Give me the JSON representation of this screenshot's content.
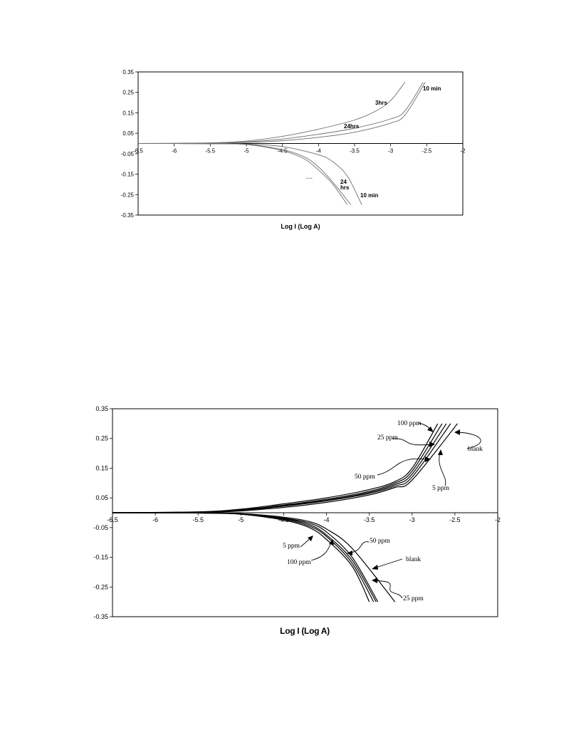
{
  "chart_data": [
    {
      "type": "line",
      "title": "",
      "xlabel": "Log I (Log A)",
      "ylabel": "",
      "xlim": [
        -6.5,
        -2
      ],
      "ylim": [
        -0.35,
        0.35
      ],
      "x_ticks": [
        "-6.5",
        "-6",
        "-5.5",
        "-5",
        "-4.5",
        "-4",
        "-3.5",
        "-3",
        "-2.5",
        "-2"
      ],
      "y_ticks": [
        "0.35",
        "0.25",
        "0.15",
        "0.05",
        "-0.05",
        "-0.15",
        "-0.25",
        "-0.35"
      ],
      "grid": false,
      "legend": "none",
      "line_color": "#6e6e6e",
      "annotations": [
        "3hrs",
        "24hrs",
        "10 min",
        "24 hrs",
        "10 min",
        "...."
      ],
      "series": [
        {
          "branch": "anodic",
          "label": "3hrs",
          "x": [
            -6.5,
            -5.5,
            -5.0,
            -4.5,
            -4.0,
            -3.5,
            -3.2,
            -3.0,
            -2.8
          ],
          "y": [
            0.0,
            0.003,
            0.012,
            0.035,
            0.07,
            0.115,
            0.16,
            0.21,
            0.3
          ]
        },
        {
          "branch": "anodic",
          "label": "24hrs",
          "x": [
            -6.5,
            -5.5,
            -5.0,
            -4.5,
            -4.0,
            -3.5,
            -3.0,
            -2.8,
            -2.55
          ],
          "y": [
            0.0,
            0.002,
            0.008,
            0.022,
            0.045,
            0.075,
            0.12,
            0.16,
            0.3
          ]
        },
        {
          "branch": "anodic",
          "label": "10 min",
          "x": [
            -6.5,
            -5.5,
            -5.0,
            -4.5,
            -4.0,
            -3.5,
            -3.0,
            -2.8,
            -2.52
          ],
          "y": [
            0.0,
            0.001,
            0.005,
            0.014,
            0.03,
            0.055,
            0.1,
            0.14,
            0.3
          ]
        },
        {
          "branch": "cathodic",
          "label": "24 hrs",
          "x": [
            -6.5,
            -5.5,
            -5.0,
            -4.5,
            -4.2,
            -4.0,
            -3.8,
            -3.6
          ],
          "y": [
            0.0,
            -0.001,
            -0.005,
            -0.035,
            -0.075,
            -0.13,
            -0.2,
            -0.3
          ]
        },
        {
          "branch": "cathodic",
          "label": "24 hrs",
          "x": [
            -6.5,
            -5.5,
            -5.0,
            -4.5,
            -4.2,
            -4.0,
            -3.8,
            -3.55
          ],
          "y": [
            0.0,
            -0.001,
            -0.004,
            -0.03,
            -0.065,
            -0.115,
            -0.19,
            -0.3
          ]
        },
        {
          "branch": "cathodic",
          "label": "10 min",
          "x": [
            -6.5,
            -5.5,
            -5.0,
            -4.5,
            -4.0,
            -3.8,
            -3.6,
            -3.4
          ],
          "y": [
            0.0,
            -0.001,
            -0.003,
            -0.015,
            -0.055,
            -0.09,
            -0.16,
            -0.3
          ]
        }
      ]
    },
    {
      "type": "line",
      "title": "",
      "xlabel": "Log I (Log A)",
      "ylabel": "",
      "xlim": [
        -6.5,
        -2
      ],
      "ylim": [
        -0.35,
        0.35
      ],
      "x_ticks": [
        "-6.5",
        "-6",
        "-5.5",
        "-5",
        "-4.5",
        "-4",
        "-3.5",
        "-3",
        "-2.5",
        "-2"
      ],
      "y_ticks": [
        "0.35",
        "0.25",
        "0.15",
        "0.05",
        "-0.05",
        "-0.15",
        "-0.25",
        "-0.35"
      ],
      "grid": false,
      "legend": "none",
      "line_color": "#000000",
      "annotations": [
        "100 ppm",
        "25 ppm",
        "blank",
        "50 ppm",
        "5 ppm",
        "5 ppm",
        "50 ppm",
        "100 ppm",
        "blank",
        "25 ppm"
      ],
      "series": [
        {
          "branch": "anodic",
          "label": "100 ppm",
          "x": [
            -6.5,
            -5.5,
            -5.0,
            -4.5,
            -4.0,
            -3.5,
            -3.2,
            -3.0,
            -2.7
          ],
          "y": [
            0.0,
            0.003,
            0.012,
            0.03,
            0.05,
            0.078,
            0.105,
            0.15,
            0.3
          ]
        },
        {
          "branch": "anodic",
          "label": "25 ppm",
          "x": [
            -6.5,
            -5.5,
            -5.0,
            -4.5,
            -4.0,
            -3.5,
            -3.2,
            -3.0,
            -2.65
          ],
          "y": [
            0.0,
            0.002,
            0.01,
            0.026,
            0.045,
            0.072,
            0.1,
            0.14,
            0.3
          ]
        },
        {
          "branch": "anodic",
          "label": "50 ppm",
          "x": [
            -6.5,
            -5.5,
            -5.0,
            -4.5,
            -4.0,
            -3.5,
            -3.2,
            -3.0,
            -2.6
          ],
          "y": [
            0.0,
            0.002,
            0.009,
            0.024,
            0.042,
            0.068,
            0.095,
            0.13,
            0.3
          ]
        },
        {
          "branch": "anodic",
          "label": "5 ppm",
          "x": [
            -6.5,
            -5.5,
            -5.0,
            -4.5,
            -4.0,
            -3.5,
            -3.2,
            -3.0,
            -2.55
          ],
          "y": [
            0.0,
            0.002,
            0.008,
            0.022,
            0.04,
            0.065,
            0.09,
            0.12,
            0.3
          ]
        },
        {
          "branch": "anodic",
          "label": "blank",
          "x": [
            -6.5,
            -5.5,
            -5.0,
            -4.5,
            -4.0,
            -3.5,
            -3.2,
            -3.0,
            -2.47
          ],
          "y": [
            0.0,
            0.001,
            0.006,
            0.018,
            0.035,
            0.06,
            0.085,
            0.11,
            0.3
          ]
        },
        {
          "branch": "cathodic",
          "label": "5 ppm",
          "x": [
            -6.5,
            -5.5,
            -5.0,
            -4.5,
            -4.2,
            -4.0,
            -3.7,
            -3.5
          ],
          "y": [
            0.0,
            -0.001,
            -0.005,
            -0.025,
            -0.05,
            -0.09,
            -0.18,
            -0.3
          ]
        },
        {
          "branch": "cathodic",
          "label": "100 ppm",
          "x": [
            -6.5,
            -5.5,
            -5.0,
            -4.5,
            -4.2,
            -4.0,
            -3.7,
            -3.45
          ],
          "y": [
            0.0,
            -0.001,
            -0.004,
            -0.022,
            -0.045,
            -0.08,
            -0.17,
            -0.3
          ]
        },
        {
          "branch": "cathodic",
          "label": "50 ppm",
          "x": [
            -6.5,
            -5.5,
            -5.0,
            -4.5,
            -4.2,
            -4.0,
            -3.7,
            -3.42
          ],
          "y": [
            0.0,
            -0.001,
            -0.004,
            -0.02,
            -0.04,
            -0.075,
            -0.16,
            -0.3
          ]
        },
        {
          "branch": "cathodic",
          "label": "blank",
          "x": [
            -6.5,
            -5.5,
            -5.0,
            -4.5,
            -4.2,
            -4.0,
            -3.7,
            -3.4
          ],
          "y": [
            0.0,
            -0.001,
            -0.003,
            -0.018,
            -0.035,
            -0.065,
            -0.15,
            -0.3
          ]
        },
        {
          "branch": "cathodic",
          "label": "25 ppm",
          "x": [
            -6.5,
            -5.5,
            -5.0,
            -4.5,
            -4.2,
            -4.0,
            -3.7,
            -3.2
          ],
          "y": [
            0.0,
            -0.001,
            -0.003,
            -0.015,
            -0.03,
            -0.055,
            -0.12,
            -0.3
          ]
        }
      ]
    }
  ]
}
